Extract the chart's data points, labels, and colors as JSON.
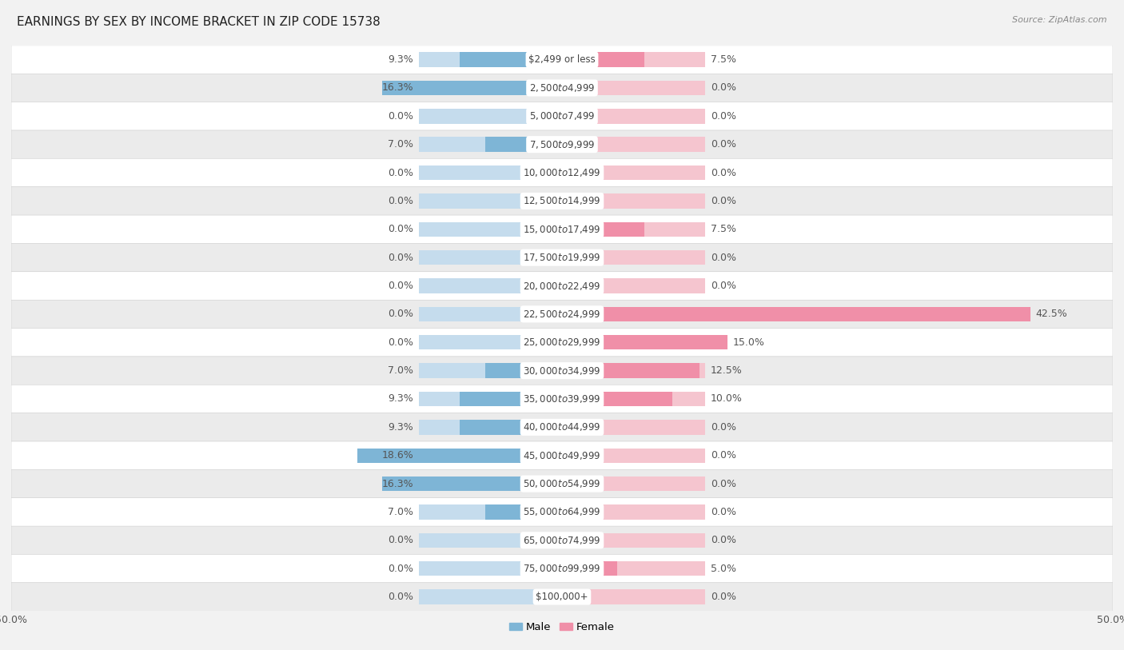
{
  "title": "EARNINGS BY SEX BY INCOME BRACKET IN ZIP CODE 15738",
  "source": "Source: ZipAtlas.com",
  "categories": [
    "$2,499 or less",
    "$2,500 to $4,999",
    "$5,000 to $7,499",
    "$7,500 to $9,999",
    "$10,000 to $12,499",
    "$12,500 to $14,999",
    "$15,000 to $17,499",
    "$17,500 to $19,999",
    "$20,000 to $22,499",
    "$22,500 to $24,999",
    "$25,000 to $29,999",
    "$30,000 to $34,999",
    "$35,000 to $39,999",
    "$40,000 to $44,999",
    "$45,000 to $49,999",
    "$50,000 to $54,999",
    "$55,000 to $64,999",
    "$65,000 to $74,999",
    "$75,000 to $99,999",
    "$100,000+"
  ],
  "male": [
    9.3,
    16.3,
    0.0,
    7.0,
    0.0,
    0.0,
    0.0,
    0.0,
    0.0,
    0.0,
    0.0,
    7.0,
    9.3,
    9.3,
    18.6,
    16.3,
    7.0,
    0.0,
    0.0,
    0.0
  ],
  "female": [
    7.5,
    0.0,
    0.0,
    0.0,
    0.0,
    0.0,
    7.5,
    0.0,
    0.0,
    42.5,
    15.0,
    12.5,
    10.0,
    0.0,
    0.0,
    0.0,
    0.0,
    0.0,
    5.0,
    0.0
  ],
  "male_color": "#7eb5d6",
  "female_color": "#f08fa8",
  "male_bg_color": "#c5dced",
  "female_bg_color": "#f5c5cf",
  "row_color_odd": "#f5f5f5",
  "row_color_even": "#e8e8e8",
  "bg_color": "#f2f2f2",
  "label_color": "#555555",
  "cat_label_color": "#444444",
  "xlim": 50.0,
  "bar_height": 0.52,
  "bg_bar_width": 13.0,
  "title_fontsize": 11,
  "label_fontsize": 9,
  "category_fontsize": 8.5,
  "source_fontsize": 8
}
